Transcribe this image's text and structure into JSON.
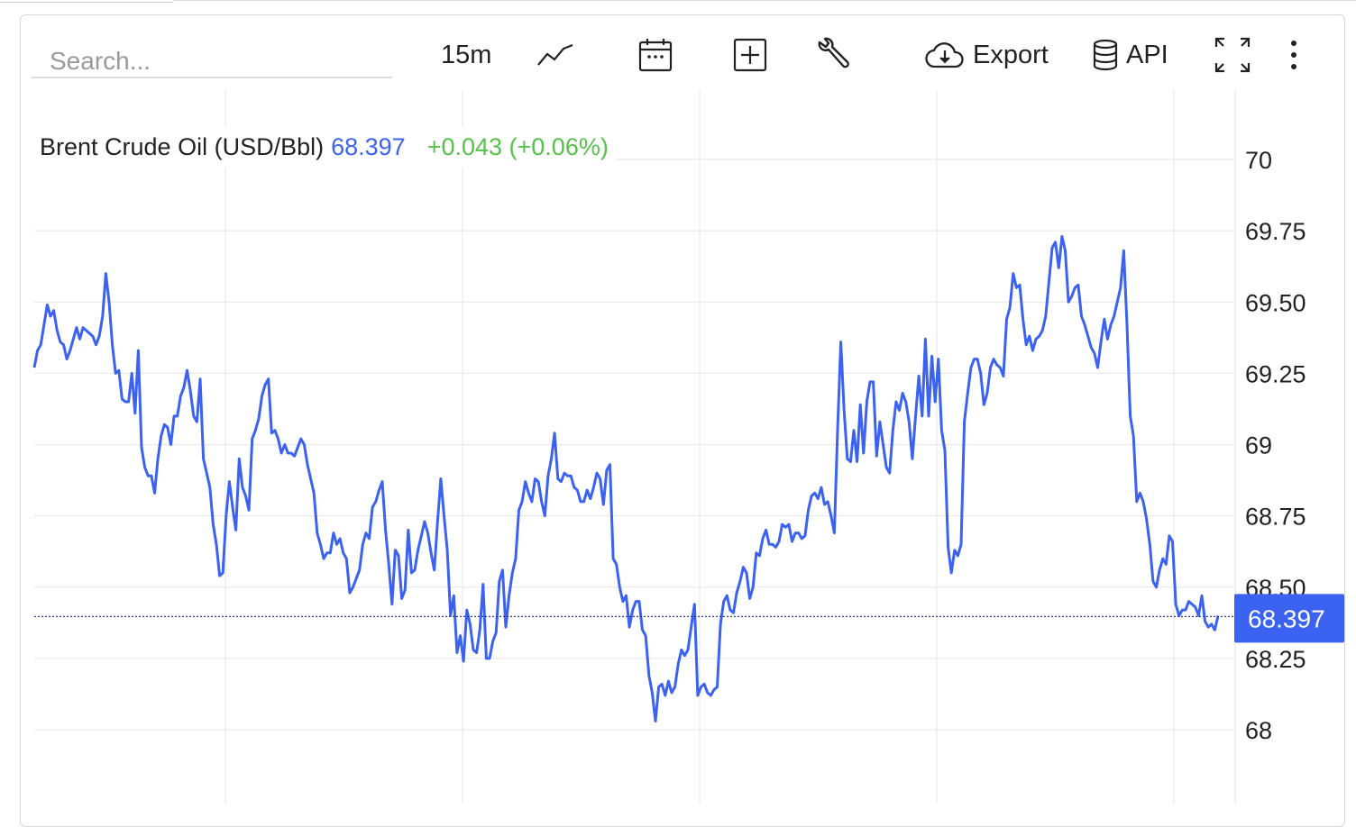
{
  "toolbar": {
    "search_placeholder": "Search...",
    "interval": "15m",
    "line_icon": "line-chart-icon",
    "calendar_icon": "calendar-icon",
    "add_icon": "plus-square-icon",
    "tools_icon": "wrench-icon",
    "export_label": "Export",
    "export_icon": "cloud-download-icon",
    "api_label": "API",
    "api_icon": "database-icon",
    "fullscreen_icon": "expand-icon",
    "more_icon": "more-vertical-icon"
  },
  "legend": {
    "name": "Brent Crude Oil (USD/Bbl)",
    "price": "68.397",
    "change": "+0.043 (+0.06%)"
  },
  "colors": {
    "line": "#3b62f0",
    "positive": "#57c24a",
    "grid": "#e6e6e6",
    "price_tag": "#3b62f0"
  },
  "chart_data": {
    "type": "line",
    "ylim": [
      67.85,
      70.25
    ],
    "y_ticks": [
      "70",
      "69.75",
      "69.50",
      "69.25",
      "69",
      "68.75",
      "68.50",
      "68.25",
      "68"
    ],
    "y_tick_values": [
      70,
      69.75,
      69.5,
      69.25,
      69,
      68.75,
      68.5,
      68.25,
      68
    ],
    "current_value": 68.397,
    "current_label": "68.397",
    "x_grid_count": 5,
    "series": [
      {
        "values": [
          69.27,
          69.33,
          69.35,
          69.42,
          69.49,
          69.45,
          69.47,
          69.4,
          69.36,
          69.35,
          69.3,
          69.33,
          69.37,
          69.41,
          69.37,
          69.41,
          69.4,
          69.39,
          69.38,
          69.35,
          69.38,
          69.45,
          69.6,
          69.5,
          69.35,
          69.25,
          69.26,
          69.16,
          69.15,
          69.15,
          69.25,
          69.11,
          69.33,
          68.99,
          68.92,
          68.89,
          68.89,
          68.83,
          68.95,
          69.03,
          69.07,
          69.06,
          69.0,
          69.1,
          69.1,
          69.17,
          69.2,
          69.26,
          69.19,
          69.1,
          69.08,
          69.23,
          68.95,
          68.9,
          68.85,
          68.72,
          68.65,
          68.54,
          68.55,
          68.75,
          68.87,
          68.78,
          68.7,
          68.95,
          68.85,
          68.82,
          68.77,
          69.02,
          69.05,
          69.09,
          69.17,
          69.21,
          69.23,
          69.04,
          69.05,
          69.02,
          68.97,
          69.0,
          68.97,
          68.97,
          68.96,
          68.99,
          69.02,
          69.0,
          68.93,
          68.88,
          68.83,
          68.69,
          68.65,
          68.6,
          68.62,
          68.62,
          68.69,
          68.65,
          68.67,
          68.62,
          68.6,
          68.48,
          68.5,
          68.53,
          68.56,
          68.65,
          68.69,
          68.67,
          68.78,
          68.8,
          68.84,
          68.87,
          68.7,
          68.58,
          68.44,
          68.63,
          68.61,
          68.46,
          68.49,
          68.7,
          68.55,
          68.56,
          68.63,
          68.68,
          68.73,
          68.69,
          68.62,
          68.56,
          68.73,
          68.88,
          68.75,
          68.63,
          68.4,
          68.47,
          68.27,
          68.33,
          68.24,
          68.42,
          68.37,
          68.28,
          68.27,
          68.35,
          68.51,
          68.25,
          68.25,
          68.31,
          68.34,
          68.52,
          68.56,
          68.36,
          68.47,
          68.55,
          68.6,
          68.77,
          68.8,
          68.87,
          68.83,
          68.8,
          68.88,
          68.87,
          68.8,
          68.75,
          68.89,
          68.95,
          69.04,
          68.88,
          68.87,
          68.9,
          68.89,
          68.89,
          68.85,
          68.84,
          68.8,
          68.8,
          68.84,
          68.81,
          68.85,
          68.9,
          68.88,
          68.79,
          68.91,
          68.93,
          68.6,
          68.58,
          68.5,
          68.45,
          68.47,
          68.36,
          68.42,
          68.45,
          68.45,
          68.35,
          68.33,
          68.19,
          68.13,
          68.03,
          68.15,
          68.16,
          68.12,
          68.17,
          68.13,
          68.15,
          68.23,
          68.28,
          68.26,
          68.28,
          68.36,
          68.44,
          68.12,
          68.15,
          68.16,
          68.13,
          68.12,
          68.14,
          68.15,
          68.37,
          68.45,
          68.47,
          68.42,
          68.41,
          68.48,
          68.52,
          68.57,
          68.55,
          68.46,
          68.5,
          68.62,
          68.61,
          68.67,
          68.7,
          68.65,
          68.65,
          68.64,
          68.66,
          68.72,
          68.71,
          68.72,
          68.66,
          68.69,
          68.69,
          68.67,
          68.68,
          68.77,
          68.82,
          68.83,
          68.81,
          68.85,
          68.79,
          68.8,
          68.75,
          68.69,
          69.05,
          69.36,
          69.12,
          68.95,
          68.94,
          69.05,
          68.94,
          69.14,
          68.97,
          69.15,
          69.22,
          69.22,
          68.96,
          69.08,
          69.0,
          68.92,
          68.9,
          69.05,
          69.15,
          69.12,
          69.18,
          69.15,
          69.08,
          68.95,
          69.1,
          69.24,
          69.1,
          69.37,
          69.1,
          69.31,
          69.15,
          69.3,
          69.05,
          68.98,
          68.64,
          68.55,
          68.63,
          68.61,
          68.65,
          69.08,
          69.18,
          69.27,
          69.3,
          69.3,
          69.25,
          69.14,
          69.18,
          69.27,
          69.3,
          69.28,
          69.27,
          69.24,
          69.44,
          69.48,
          69.6,
          69.55,
          69.56,
          69.44,
          69.35,
          69.38,
          69.33,
          69.37,
          69.38,
          69.4,
          69.45,
          69.57,
          69.69,
          69.71,
          69.62,
          69.73,
          69.68,
          69.5,
          69.52,
          69.55,
          69.56,
          69.45,
          69.42,
          69.38,
          69.34,
          69.32,
          69.27,
          69.36,
          69.44,
          69.37,
          69.42,
          69.45,
          69.5,
          69.55,
          69.68,
          69.42,
          69.1,
          69.03,
          68.8,
          68.83,
          68.8,
          68.74,
          68.65,
          68.52,
          68.5,
          68.56,
          68.6,
          68.58,
          68.68,
          68.66,
          68.44,
          68.4,
          68.42,
          68.42,
          68.45,
          68.44,
          68.43,
          68.4,
          68.47,
          68.38,
          68.36,
          68.37,
          68.35,
          68.4
        ]
      }
    ]
  }
}
